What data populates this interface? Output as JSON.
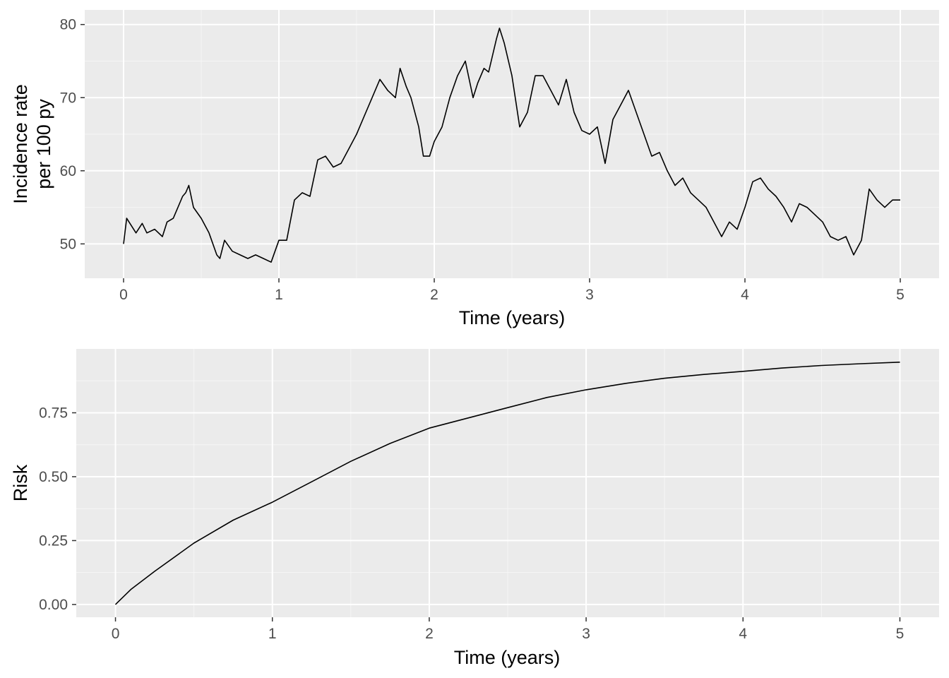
{
  "colors": {
    "panel_background": "#ebebeb",
    "grid_major": "#ffffff",
    "grid_minor": "#f6f6f6",
    "line": "#000000",
    "tick_label": "#4d4d4d",
    "axis_title": "#000000"
  },
  "chart_data": [
    {
      "type": "line",
      "title": "",
      "xlabel": "Time (years)",
      "ylabel_lines": [
        "Incidence rate",
        "per 100 py"
      ],
      "xlim": [
        -0.25,
        5.25
      ],
      "ylim": [
        45.3,
        82.0
      ],
      "x_ticks": [
        0,
        1,
        2,
        3,
        4,
        5
      ],
      "x_tick_labels": [
        "0",
        "1",
        "2",
        "3",
        "4",
        "5"
      ],
      "y_ticks": [
        50,
        60,
        70,
        80
      ],
      "y_tick_labels": [
        "50",
        "60",
        "70",
        "80"
      ],
      "grid": true,
      "legend": "none",
      "series": [
        {
          "x": [
            0,
            0.02,
            0.05,
            0.08,
            0.12,
            0.15,
            0.2,
            0.25,
            0.28,
            0.32,
            0.35,
            0.38,
            0.4,
            0.42,
            0.45,
            0.5,
            0.55,
            0.6,
            0.62,
            0.65,
            0.7,
            0.75,
            0.8,
            0.85,
            0.9,
            0.95,
            1.0,
            1.05,
            1.1,
            1.15,
            1.2,
            1.25,
            1.3,
            1.35,
            1.4,
            1.45,
            1.5,
            1.55,
            1.6,
            1.65,
            1.7,
            1.75,
            1.78,
            1.82,
            1.85,
            1.9,
            1.93,
            1.97,
            2.0,
            2.05,
            2.1,
            2.15,
            2.2,
            2.25,
            2.28,
            2.32,
            2.35,
            2.4,
            2.42,
            2.45,
            2.5,
            2.55,
            2.6,
            2.65,
            2.7,
            2.75,
            2.8,
            2.85,
            2.9,
            2.95,
            3.0,
            3.05,
            3.1,
            3.15,
            3.2,
            3.25,
            3.3,
            3.35,
            3.4,
            3.45,
            3.5,
            3.55,
            3.6,
            3.65,
            3.7,
            3.75,
            3.8,
            3.85,
            3.9,
            3.95,
            4.0,
            4.05,
            4.1,
            4.15,
            4.2,
            4.25,
            4.3,
            4.35,
            4.4,
            4.45,
            4.5,
            4.55,
            4.6,
            4.65,
            4.7,
            4.75,
            4.8,
            4.85,
            4.9,
            4.95,
            5.0
          ],
          "y": [
            50.0,
            53.5,
            52.5,
            51.5,
            52.8,
            51.5,
            52.0,
            51.0,
            53.0,
            53.5,
            55.0,
            56.5,
            57.0,
            58.0,
            55.0,
            53.5,
            51.5,
            48.5,
            48.0,
            50.5,
            49.0,
            48.5,
            48.0,
            48.5,
            48.0,
            47.5,
            50.5,
            50.5,
            56.0,
            57.0,
            56.5,
            61.5,
            62.0,
            60.5,
            61.0,
            63.0,
            65.0,
            67.5,
            70.0,
            72.5,
            71.0,
            70.0,
            74.0,
            71.5,
            70.0,
            66.0,
            62.0,
            62.0,
            64.0,
            66.0,
            70.0,
            73.0,
            75.0,
            70.0,
            72.0,
            74.0,
            73.5,
            78.0,
            79.5,
            77.5,
            73.0,
            66.0,
            68.0,
            73.0,
            73.0,
            71.0,
            69.0,
            72.5,
            68.0,
            65.5,
            65.0,
            66.0,
            61.0,
            67.0,
            69.0,
            71.0,
            68.0,
            65.0,
            62.0,
            62.5,
            60.0,
            58.0,
            59.0,
            57.0,
            56.0,
            55.0,
            53.0,
            51.0,
            53.0,
            52.0,
            55.0,
            58.5,
            59.0,
            57.5,
            56.5,
            55.0,
            53.0,
            55.5,
            55.0,
            54.0,
            53.0,
            51.0,
            50.5,
            51.0,
            48.5,
            50.5,
            57.5,
            56.0,
            55.0,
            56.0,
            56.0
          ]
        }
      ]
    },
    {
      "type": "line",
      "title": "",
      "xlabel": "Time (years)",
      "ylabel": "Risk",
      "xlim": [
        -0.25,
        5.25
      ],
      "ylim": [
        -0.05,
        1.0
      ],
      "x_ticks": [
        0,
        1,
        2,
        3,
        4,
        5
      ],
      "x_tick_labels": [
        "0",
        "1",
        "2",
        "3",
        "4",
        "5"
      ],
      "y_ticks": [
        0,
        0.25,
        0.5,
        0.75
      ],
      "y_tick_labels": [
        "0.00",
        "0.25",
        "0.50",
        "0.75"
      ],
      "grid": true,
      "legend": "none",
      "series": [
        {
          "x": [
            0,
            0.1,
            0.25,
            0.5,
            0.75,
            1.0,
            1.25,
            1.5,
            1.75,
            2.0,
            2.25,
            2.5,
            2.75,
            3.0,
            3.25,
            3.5,
            3.75,
            4.0,
            4.25,
            4.5,
            4.75,
            5.0
          ],
          "y": [
            0.0,
            0.06,
            0.13,
            0.24,
            0.33,
            0.4,
            0.48,
            0.56,
            0.63,
            0.69,
            0.73,
            0.77,
            0.81,
            0.84,
            0.865,
            0.885,
            0.9,
            0.912,
            0.925,
            0.935,
            0.942,
            0.948
          ]
        }
      ]
    }
  ]
}
